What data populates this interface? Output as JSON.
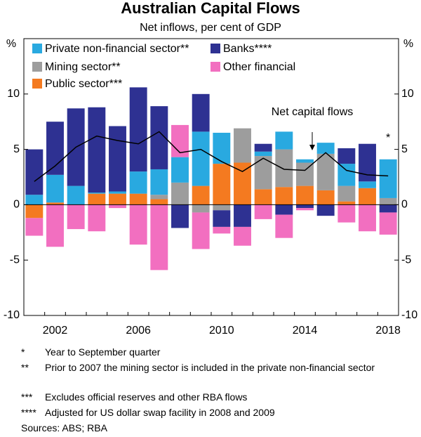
{
  "chart_data": {
    "type": "bar",
    "stacked": true,
    "title": "Australian Capital Flows",
    "subtitle": "Net inflows, per cent of GDP",
    "y_unit": "%",
    "categories": [
      null,
      "2002",
      null,
      null,
      null,
      "2006",
      null,
      null,
      null,
      "2010",
      null,
      null,
      null,
      "2014",
      null,
      null,
      null,
      "2018"
    ],
    "series": [
      {
        "name": "Private non-financial sector**",
        "color": "#29a9e0",
        "values": [
          0.9,
          2.5,
          1.7,
          0.1,
          0.2,
          2.0,
          2.3,
          2.3,
          4.9,
          2.8,
          0,
          0.4,
          1.6,
          0.3,
          1.0,
          2.0,
          0.6,
          3.5
        ]
      },
      {
        "name": "Banks****",
        "color": "#2e3192",
        "values": [
          4.1,
          4.8,
          7.0,
          7.7,
          5.9,
          7.6,
          5.7,
          -2.1,
          3.4,
          -1.5,
          -2.0,
          0.7,
          -0.9,
          -0.3,
          -1.0,
          1.4,
          3.4,
          -0.7
        ]
      },
      {
        "name": "Mining sector**",
        "color": "#9d9d9d",
        "values": [
          0,
          0,
          0,
          0,
          0,
          0,
          0.4,
          2.0,
          -0.7,
          -0.5,
          3.1,
          3.0,
          3.4,
          2.1,
          3.3,
          1.4,
          0,
          0.6
        ]
      },
      {
        "name": "Other financial",
        "color": "#f26fc0",
        "values": [
          -1.6,
          -3.8,
          -2.2,
          -2.4,
          -0.3,
          -3.6,
          -5.9,
          2.9,
          -3.3,
          -0.6,
          -1.7,
          -1.3,
          -2.1,
          -0.2,
          0,
          -1.6,
          -2.4,
          -2.0
        ]
      },
      {
        "name": "Public sector***",
        "color": "#f47a20",
        "values": [
          -1.2,
          0.2,
          0,
          1.0,
          1.0,
          1.0,
          0.5,
          0,
          1.7,
          3.7,
          3.8,
          1.4,
          1.6,
          1.7,
          1.3,
          0.3,
          1.5,
          0
        ]
      }
    ],
    "line": {
      "name": "Net capital flows",
      "color": "#000000",
      "values": [
        2.1,
        3.5,
        5.2,
        6.2,
        5.8,
        5.5,
        6.6,
        4.7,
        5.0,
        3.9,
        3.0,
        4.2,
        3.2,
        3.1,
        4.7,
        3.1,
        2.7,
        2.6
      ]
    },
    "annotation": "*",
    "ylim": [
      -10,
      15
    ],
    "yticks": [
      -10,
      -5,
      0,
      5,
      10
    ]
  },
  "footnotes": [
    {
      "marker": "*",
      "text": "Year to September quarter"
    },
    {
      "marker": "**",
      "text": "Prior to 2007 the mining sector is included in the private non-financial sector"
    },
    {
      "marker": "***",
      "text": "Excludes official reserves and other RBA flows"
    },
    {
      "marker": "****",
      "text": "Adjusted for US dollar swap facility in 2008 and 2009"
    }
  ],
  "source": "Sources: ABS; RBA"
}
